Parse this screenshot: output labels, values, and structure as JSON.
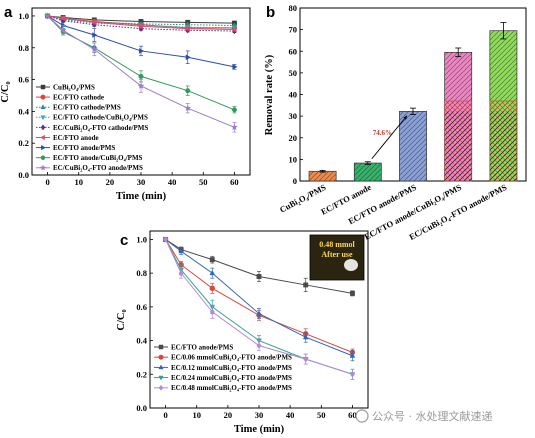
{
  "panels": {
    "a": "a",
    "b": "b",
    "c": "c"
  },
  "watermark": "公众号 · 水处理文献速递",
  "chart_data": [
    {
      "id": "a",
      "type": "line",
      "xlabel": "Time (min)",
      "ylabel": "C/C₀",
      "xlim": [
        -5,
        65
      ],
      "ylim": [
        0.0,
        1.05
      ],
      "xticks": [
        0,
        10,
        20,
        30,
        40,
        50,
        60
      ],
      "yticks": [
        0.0,
        0.2,
        0.4,
        0.6,
        0.8,
        1.0
      ],
      "x": [
        0,
        5,
        15,
        30,
        45,
        60
      ],
      "legend_position": "bottom-left",
      "series": [
        {
          "name": "CuBi₂O₄/PMS",
          "color": "#3d3d3d",
          "marker": "square",
          "dash": "solid",
          "values": [
            1.0,
            0.99,
            0.975,
            0.965,
            0.96,
            0.955
          ],
          "err": [
            0.005,
            0.005,
            0.006,
            0.006,
            0.006,
            0.006
          ]
        },
        {
          "name": "EC/FTO cathode",
          "color": "#d9483b",
          "marker": "circle",
          "dash": "solid",
          "values": [
            1.0,
            0.985,
            0.965,
            0.945,
            0.925,
            0.925
          ],
          "err": [
            0.005,
            0.01,
            0.012,
            0.012,
            0.015,
            0.012
          ]
        },
        {
          "name": "EC/FTO cathode/PMS",
          "color": "#2a8a86",
          "marker": "triangle",
          "dash": "dotted",
          "values": [
            1.0,
            0.98,
            0.96,
            0.95,
            0.945,
            0.94
          ],
          "err": [
            0.005,
            0.005,
            0.008,
            0.008,
            0.008,
            0.008
          ]
        },
        {
          "name": "EC/FTO cathode/CuBi₂O₄/PMS",
          "color": "#2bb2b0",
          "marker": "triangle-down",
          "dash": "dotted",
          "values": [
            1.0,
            0.975,
            0.955,
            0.94,
            0.93,
            0.925
          ],
          "err": [
            0.005,
            0.008,
            0.01,
            0.01,
            0.01,
            0.01
          ]
        },
        {
          "name": "EC/CuBi₂O₄-FTO cathode/PMS",
          "color": "#5a2f8a",
          "marker": "diamond",
          "dash": "dotted",
          "values": [
            1.0,
            0.97,
            0.945,
            0.92,
            0.91,
            0.905
          ],
          "err": [
            0.005,
            0.008,
            0.01,
            0.01,
            0.01,
            0.01
          ]
        },
        {
          "name": "EC/FTO anode",
          "color": "#e04a6f",
          "marker": "triangle-left",
          "dash": "solid",
          "values": [
            1.0,
            0.985,
            0.96,
            0.935,
            0.92,
            0.915
          ],
          "err": [
            0.005,
            0.008,
            0.01,
            0.01,
            0.01,
            0.01
          ]
        },
        {
          "name": "EC/FTO anode/PMS",
          "color": "#2e4da8",
          "marker": "triangle-right",
          "dash": "solid",
          "values": [
            1.0,
            0.94,
            0.88,
            0.78,
            0.74,
            0.68
          ],
          "err": [
            0.005,
            0.02,
            0.04,
            0.03,
            0.04,
            0.015
          ]
        },
        {
          "name": "EC/FTO anode/CuBi₂O₄/PMS",
          "color": "#2f9a5a",
          "marker": "hexagon",
          "dash": "solid",
          "values": [
            1.0,
            0.9,
            0.8,
            0.62,
            0.53,
            0.41
          ],
          "err": [
            0.005,
            0.02,
            0.03,
            0.035,
            0.03,
            0.02
          ]
        },
        {
          "name": "EC/CuBi₂O₄-FTO anode/PMS",
          "color": "#9b7cc8",
          "marker": "star",
          "dash": "solid",
          "values": [
            1.0,
            0.91,
            0.79,
            0.56,
            0.42,
            0.3
          ],
          "err": [
            0.005,
            0.03,
            0.04,
            0.04,
            0.03,
            0.03
          ]
        }
      ]
    },
    {
      "id": "b",
      "type": "bar",
      "ylabel": "Removal rate (%)",
      "ylim": [
        0,
        80
      ],
      "yticks": [
        0,
        10,
        20,
        30,
        40,
        50,
        60,
        70,
        80
      ],
      "categories": [
        "CuBi₂O₄/PMS",
        "EC/FTO anode",
        "EC/FTO anode/PMS",
        "EC/FTO anode/CuBi₂O₄/PMS",
        "EC/CuBi₂O₄-FTO anode/PMS"
      ],
      "values": [
        4.5,
        8.3,
        32.2,
        59.5,
        69.5
      ],
      "err": [
        0.4,
        0.6,
        1.5,
        2.0,
        3.8
      ],
      "colors": [
        "#f08a4b",
        "#35b36a",
        "#8aa0d8",
        "#ee86c4",
        "#8fdb5a"
      ],
      "hatch_overlay_values": [
        null,
        null,
        null,
        37,
        37
      ],
      "annotation": {
        "text": "74.6%",
        "from_category": 1,
        "to_category": 2
      }
    },
    {
      "id": "c",
      "type": "line",
      "xlabel": "Time (min)",
      "ylabel": "C/C₀",
      "xlim": [
        -5,
        65
      ],
      "ylim": [
        0.0,
        1.05
      ],
      "xticks": [
        0,
        10,
        20,
        30,
        40,
        50,
        60
      ],
      "yticks": [
        0.0,
        0.2,
        0.4,
        0.6,
        0.8,
        1.0
      ],
      "x": [
        0,
        5,
        15,
        30,
        45,
        60
      ],
      "legend_position": "bottom-left",
      "inset": {
        "line1": "0.48 mmol",
        "line2": "After use"
      },
      "series": [
        {
          "name": "EC/FTO anode/PMS",
          "color": "#4a4a4a",
          "marker": "square",
          "values": [
            1.0,
            0.94,
            0.88,
            0.78,
            0.73,
            0.68
          ],
          "err": [
            0.005,
            0.015,
            0.02,
            0.03,
            0.04,
            0.015
          ]
        },
        {
          "name": "EC/0.06 mmolCuBi₂O₄-FTO anode/PMS",
          "color": "#d9483b",
          "marker": "circle",
          "values": [
            1.0,
            0.85,
            0.71,
            0.55,
            0.44,
            0.33
          ],
          "err": [
            0.005,
            0.02,
            0.03,
            0.03,
            0.03,
            0.02
          ]
        },
        {
          "name": "EC/0.12 mmolCuBi₂O₄-FTO anode/PMS",
          "color": "#2e68b8",
          "marker": "triangle",
          "values": [
            1.0,
            0.93,
            0.8,
            0.56,
            0.42,
            0.31
          ],
          "err": [
            0.005,
            0.02,
            0.03,
            0.03,
            0.03,
            0.03
          ]
        },
        {
          "name": "EC/0.24 mmolCuBi₂O₄-FTO anode/PMS",
          "color": "#2fa58b",
          "marker": "triangle-down",
          "values": [
            1.0,
            0.82,
            0.6,
            0.4,
            0.29,
            0.2
          ],
          "err": [
            0.005,
            0.03,
            0.04,
            0.03,
            0.03,
            0.03
          ]
        },
        {
          "name": "EC/0.48 mmolCuBi₂O₄-FTO anode/PMS",
          "color": "#b28ad8",
          "marker": "diamond",
          "values": [
            1.0,
            0.8,
            0.57,
            0.37,
            0.29,
            0.2
          ],
          "err": [
            0.005,
            0.03,
            0.04,
            0.03,
            0.03,
            0.03
          ]
        }
      ]
    }
  ]
}
